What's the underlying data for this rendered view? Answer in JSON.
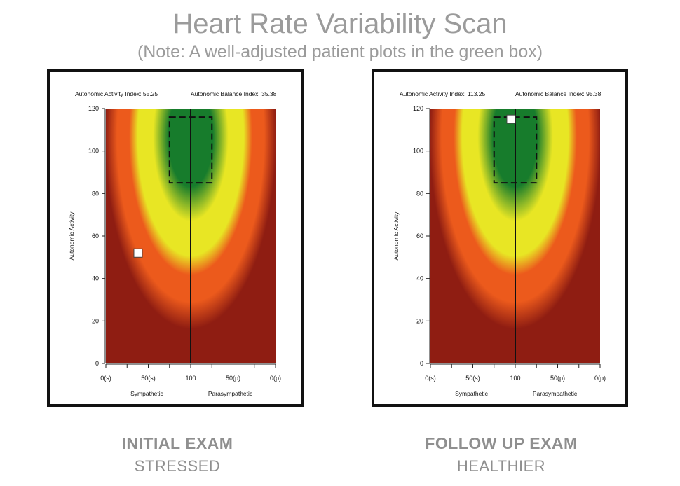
{
  "header": {
    "title": "Heart Rate Variability Scan",
    "subtitle": "(Note: A well-adjusted patient plots in the green box)"
  },
  "colors": {
    "dark_red": "#8f1d12",
    "orange": "#ec5a1c",
    "yellow": "#e8e624",
    "green": "#177c2c",
    "caption_gray": "#8f8f8f"
  },
  "chart_data": [
    {
      "type": "heatmap",
      "index_labels": {
        "activity": "Autonomic Activity Index: 55.25",
        "balance": "Autonomic Balance Index: 35.38"
      },
      "ylabel": "Autonomic Activity",
      "ylim": [
        0,
        120
      ],
      "yticks": [
        "0",
        "20",
        "40",
        "60",
        "80",
        "100",
        "120"
      ],
      "xticks": [
        "0(s)",
        "50(s)",
        "100",
        "50(p)",
        "0(p)"
      ],
      "xlabel_left": "Sympathetic",
      "xlabel_right": "Parasympathetic",
      "target_zone": {
        "x": [
          75,
          125
        ],
        "y": [
          85,
          116
        ]
      },
      "patient_point": {
        "x": 38,
        "y": 52
      },
      "caption": "INITIAL EXAM",
      "status": "STRESSED"
    },
    {
      "type": "heatmap",
      "index_labels": {
        "activity": "Autonomic Activity Index: 113.25",
        "balance": "Autonomic Balance Index: 95.38"
      },
      "ylabel": "Autonomic Activity",
      "ylim": [
        0,
        120
      ],
      "yticks": [
        "0",
        "20",
        "40",
        "60",
        "80",
        "100",
        "120"
      ],
      "xticks": [
        "0(s)",
        "50(s)",
        "100",
        "50(p)",
        "0(p)"
      ],
      "xlabel_left": "Sympathetic",
      "xlabel_right": "Parasympathetic",
      "target_zone": {
        "x": [
          75,
          125
        ],
        "y": [
          85,
          116
        ]
      },
      "patient_point": {
        "x": 95,
        "y": 115
      },
      "caption": "FOLLOW UP EXAM",
      "status": "HEALTHIER"
    }
  ]
}
